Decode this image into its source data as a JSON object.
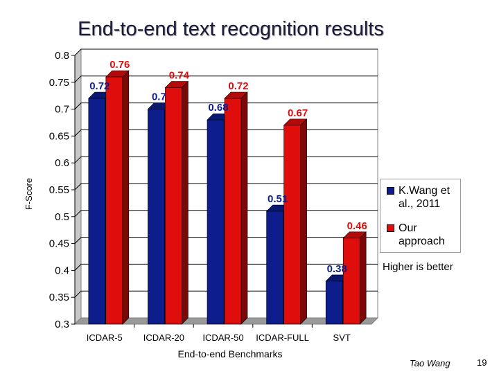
{
  "slide": {
    "title": "End-to-end text recognition results",
    "author": "Tao Wang",
    "page_number": "19",
    "note": "Higher is better"
  },
  "chart_data": {
    "type": "bar",
    "title": "",
    "xlabel": "End-to-end Benchmarks",
    "ylabel": "F-Score",
    "categories": [
      "ICDAR-5",
      "ICDAR-20",
      "ICDAR-50",
      "ICDAR-FULL",
      "SVT"
    ],
    "series": [
      {
        "name": "K.Wang et al., 2011",
        "values": [
          0.72,
          0.7,
          0.68,
          0.51,
          0.38
        ],
        "color": "#0d1e8c"
      },
      {
        "name": "Our approach",
        "values": [
          0.76,
          0.74,
          0.72,
          0.67,
          0.46
        ],
        "color": "#e00d0d"
      }
    ],
    "data_labels": [
      [
        "0.72",
        "0.7",
        "0.68",
        "0.51",
        "0.38"
      ],
      [
        "0.76",
        "0.74",
        "0.72",
        "0.67",
        "0.46"
      ]
    ],
    "ylim": [
      0.3,
      0.8
    ],
    "yticks": [
      "0.8",
      "0.75",
      "0.7",
      "0.65",
      "0.6",
      "0.55",
      "0.5",
      "0.45",
      "0.4",
      "0.35",
      "0.3"
    ],
    "grid": true,
    "legend": "right",
    "style": "3d"
  }
}
